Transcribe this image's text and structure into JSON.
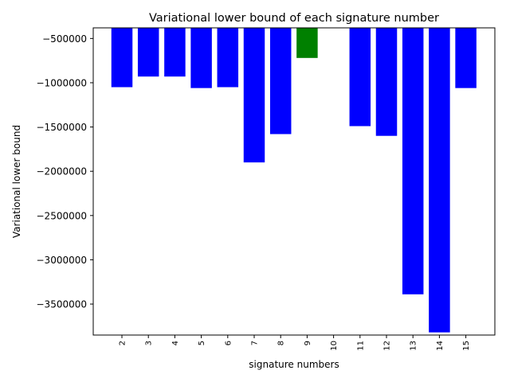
{
  "chart_data": {
    "type": "bar",
    "title": "Variational lower bound of each signature number",
    "xlabel": "signature numbers",
    "ylabel": "Variational lower bound",
    "categories": [
      "2",
      "3",
      "4",
      "5",
      "6",
      "7",
      "8",
      "9",
      "10",
      "11",
      "12",
      "13",
      "14",
      "15"
    ],
    "values": [
      -1050000,
      -930000,
      -930000,
      -1060000,
      -1050000,
      -1900000,
      -1580000,
      -720000,
      null,
      -1490000,
      -1600000,
      -3390000,
      -3820000,
      -1060000
    ],
    "colors": [
      "#0000ff",
      "#0000ff",
      "#0000ff",
      "#0000ff",
      "#0000ff",
      "#0000ff",
      "#0000ff",
      "#008000",
      "#0000ff",
      "#0000ff",
      "#0000ff",
      "#0000ff",
      "#0000ff",
      "#0000ff"
    ],
    "ylim": [
      -3850000,
      -380000
    ],
    "yticks": [
      -500000,
      -1000000,
      -1500000,
      -2000000,
      -2500000,
      -3000000,
      -3500000
    ],
    "ytick_labels": [
      "−500000",
      "−1000000",
      "−1500000",
      "−2000000",
      "−2500000",
      "−3000000",
      "−3500000"
    ],
    "grid": false,
    "x_tick_rotation": 90
  }
}
